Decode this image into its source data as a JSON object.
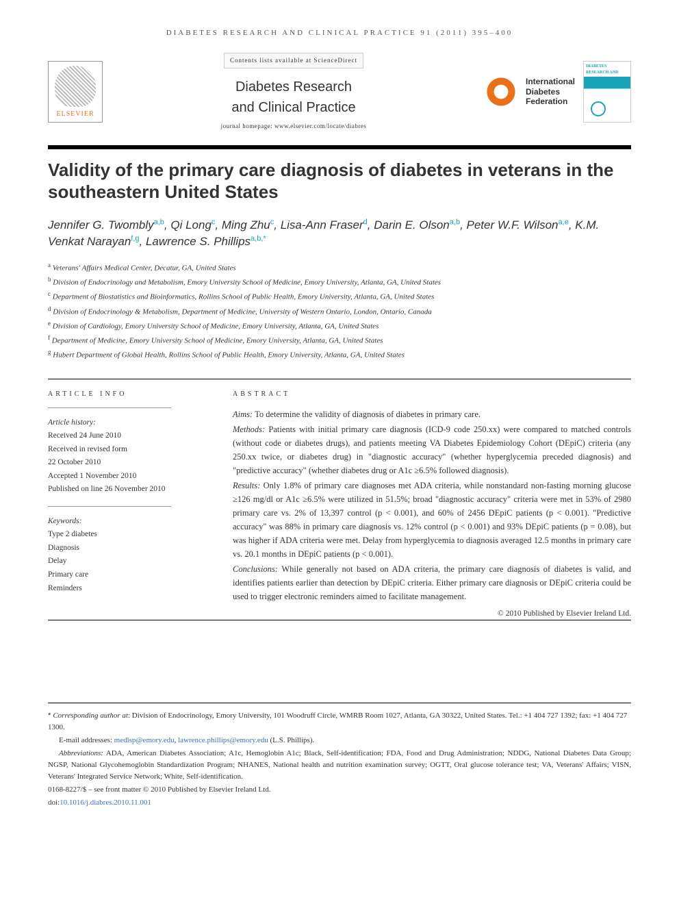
{
  "journal_header": "DIABETES RESEARCH AND CLINICAL PRACTICE 91 (2011) 395–400",
  "masthead": {
    "contents_line": "Contents lists available at ScienceDirect",
    "journal_name_line1": "Diabetes Research",
    "journal_name_line2": "and Clinical Practice",
    "homepage": "journal homepage: www.elsevier.com/locate/diabres",
    "elsevier_label": "ELSEVIER",
    "idf_line1": "International",
    "idf_line2": "Diabetes",
    "idf_line3": "Federation",
    "cover_text": "DIABETES RESEARCH AND CLINICAL PRACTICE"
  },
  "title": "Validity of the primary care diagnosis of diabetes in veterans in the southeastern United States",
  "authors": [
    {
      "name": "Jennifer G. Twombly",
      "sup": "a,b"
    },
    {
      "name": "Qi Long",
      "sup": "c"
    },
    {
      "name": "Ming Zhu",
      "sup": "c"
    },
    {
      "name": "Lisa-Ann Fraser",
      "sup": "d"
    },
    {
      "name": "Darin E. Olson",
      "sup": "a,b"
    },
    {
      "name": "Peter W.F. Wilson",
      "sup": "a,e"
    },
    {
      "name": "K.M. Venkat Narayan",
      "sup": "f,g"
    },
    {
      "name": "Lawrence S. Phillips",
      "sup": "a,b,*"
    }
  ],
  "affiliations": [
    {
      "key": "a",
      "text": "Veterans' Affairs Medical Center, Decatur, GA, United States"
    },
    {
      "key": "b",
      "text": "Division of Endocrinology and Metabolism, Emory University School of Medicine, Emory University, Atlanta, GA, United States"
    },
    {
      "key": "c",
      "text": "Department of Biostatistics and Bioinformatics, Rollins School of Public Health, Emory University, Atlanta, GA, United States"
    },
    {
      "key": "d",
      "text": "Division of Endocrinology & Metabolism, Department of Medicine, University of Western Ontario, London, Ontario, Canada"
    },
    {
      "key": "e",
      "text": "Division of Cardiology, Emory University School of Medicine, Emory University, Atlanta, GA, United States"
    },
    {
      "key": "f",
      "text": "Department of Medicine, Emory University School of Medicine, Emory University, Atlanta, GA, United States"
    },
    {
      "key": "g",
      "text": "Hubert Department of Global Health, Rollins School of Public Health, Emory University, Atlanta, GA, United States"
    }
  ],
  "article_info": {
    "head": "ARTICLE INFO",
    "history_label": "Article history:",
    "received": "Received 24 June 2010",
    "revised_l1": "Received in revised form",
    "revised_l2": "22 October 2010",
    "accepted": "Accepted 1 November 2010",
    "published": "Published on line 26 November 2010",
    "keywords_label": "Keywords:",
    "keywords": [
      "Type 2 diabetes",
      "Diagnosis",
      "Delay",
      "Primary care",
      "Reminders"
    ]
  },
  "abstract": {
    "head": "ABSTRACT",
    "aims_label": "Aims:",
    "aims": " To determine the validity of diagnosis of diabetes in primary care.",
    "methods_label": "Methods:",
    "methods": " Patients with initial primary care diagnosis (ICD-9 code 250.xx) were compared to matched controls (without code or diabetes drugs), and patients meeting VA Diabetes Epidemiology Cohort (DEpiC) criteria (any 250.xx twice, or diabetes drug) in \"diagnostic accuracy\" (whether hyperglycemia preceded diagnosis) and \"predictive accuracy\" (whether diabetes drug or A1c ≥6.5% followed diagnosis).",
    "results_label": "Results:",
    "results": " Only 1.8% of primary care diagnoses met ADA criteria, while nonstandard non-fasting morning glucose ≥126 mg/dl or A1c ≥6.5% were utilized in 51.5%; broad \"diagnostic accuracy\" criteria were met in 53% of 2980 primary care vs. 2% of 13,397 control (p < 0.001), and 60% of 2456 DEpiC patients (p < 0.001). \"Predictive accuracy\" was 88% in primary care diagnosis vs. 12% control (p < 0.001) and 93% DEpiC patients (p = 0.08), but was higher if ADA criteria were met. Delay from hyperglycemia to diagnosis averaged 12.5 months in primary care vs. 20.1 months in DEpiC patients (p < 0.001).",
    "conclusions_label": "Conclusions:",
    "conclusions": " While generally not based on ADA criteria, the primary care diagnosis of diabetes is valid, and identifies patients earlier than detection by DEpiC criteria. Either primary care diagnosis or DEpiC criteria could be used to trigger electronic reminders aimed to facilitate management.",
    "copyright": "© 2010 Published by Elsevier Ireland Ltd."
  },
  "footer": {
    "corresponding_label": "Corresponding author at",
    "corresponding": ": Division of Endocrinology, Emory University, 101 Woodruff Circle, WMRB Room 1027, Atlanta, GA 30322, United States. Tel.: +1 404 727 1392; fax: +1 404 727 1300.",
    "email_label": "E-mail addresses: ",
    "email1": "medlsp@emory.edu",
    "email_sep": ", ",
    "email2": "lawrence.phillips@emory.edu",
    "email_suffix": " (L.S. Phillips).",
    "abbrev_label": "Abbreviations:",
    "abbrev": " ADA, American Diabetes Association; A1c, Hemoglobin A1c; Black, Self-identification; FDA, Food and Drug Administration; NDDG, National Diabetes Data Group; NGSP, National Glycohemoglobin Standardization Program; NHANES, National health and nutrition examination survey; OGTT, Oral glucose tolerance test; VA, Veterans' Affairs; VISN, Veterans' Integrated Service Network; White, Self-identification.",
    "issn_line": "0168-8227/$ – see front matter © 2010 Published by Elsevier Ireland Ltd.",
    "doi_prefix": "doi:",
    "doi": "10.1016/j.diabres.2010.11.001"
  },
  "colors": {
    "accent_orange": "#e9711c",
    "accent_teal": "#19a3b8",
    "link_blue": "#3a6fb7",
    "text": "#333333",
    "rule": "#000000"
  },
  "typography": {
    "title_fontsize": 26,
    "authors_fontsize": 17,
    "body_fontsize": 13,
    "abstract_fontsize": 12.5,
    "affiliation_fontsize": 11,
    "footer_fontsize": 11,
    "title_font": "Trebuchet MS",
    "body_font": "Georgia"
  }
}
